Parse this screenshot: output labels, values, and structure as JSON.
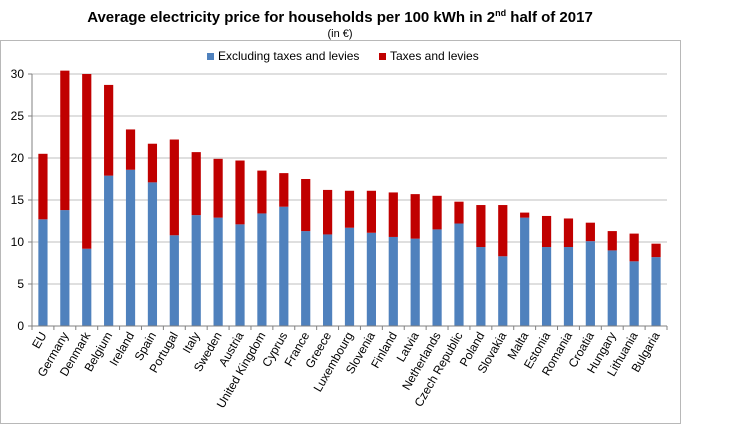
{
  "chart_data": {
    "type": "bar",
    "stacked": true,
    "title_main": "Average electricity price for households per 100 kWh in 2",
    "title_sup": "nd",
    "title_end": " half of 2017",
    "subtitle": "(in €)",
    "xlabel": "",
    "ylabel": "",
    "ylim": [
      0,
      30
    ],
    "yticks": [
      "0",
      "5",
      "10",
      "15",
      "20",
      "25",
      "30"
    ],
    "grid": true,
    "legend_position": "top",
    "categories": [
      "EU",
      "Germany",
      "Denmark",
      "Belgium",
      "Ireland",
      "Spain",
      "Portugal",
      "Italy",
      "Sweden",
      "Austria",
      "United Kingdom",
      "Cyprus",
      "France",
      "Greece",
      "Luxembourg",
      "Slovenia",
      "Finland",
      "Latvia",
      "Netherlands",
      "Czech Republic",
      "Poland",
      "Slovakia",
      "Malta",
      "Estonia",
      "Romania",
      "Croatia",
      "Hungary",
      "Lithuania",
      "Bulgaria"
    ],
    "series": [
      {
        "name": "Excluding taxes and levies",
        "color": "#4f81bd",
        "values": [
          12.7,
          13.8,
          9.2,
          17.9,
          18.6,
          17.1,
          10.8,
          13.2,
          12.9,
          12.1,
          13.4,
          14.2,
          11.3,
          10.9,
          11.7,
          11.1,
          10.6,
          10.4,
          11.5,
          12.2,
          9.4,
          8.3,
          12.9,
          9.4,
          9.4,
          10.1,
          9.0,
          7.7,
          8.2
        ]
      },
      {
        "name": "Taxes and levies",
        "color": "#c00000",
        "values": [
          7.8,
          16.6,
          20.8,
          10.8,
          4.8,
          4.6,
          11.4,
          7.5,
          7.0,
          7.6,
          5.1,
          4.0,
          6.2,
          5.3,
          4.4,
          5.0,
          5.3,
          5.3,
          4.0,
          2.6,
          5.0,
          6.1,
          0.6,
          3.7,
          3.4,
          2.2,
          2.3,
          3.3,
          1.6
        ]
      }
    ]
  }
}
